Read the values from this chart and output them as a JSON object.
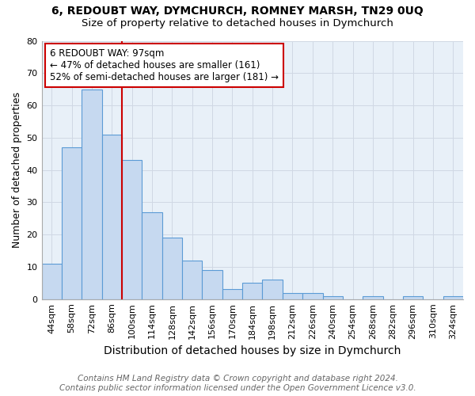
{
  "title": "6, REDOUBT WAY, DYMCHURCH, ROMNEY MARSH, TN29 0UQ",
  "subtitle": "Size of property relative to detached houses in Dymchurch",
  "xlabel": "Distribution of detached houses by size in Dymchurch",
  "ylabel": "Number of detached properties",
  "categories": [
    "44sqm",
    "58sqm",
    "72sqm",
    "86sqm",
    "100sqm",
    "114sqm",
    "128sqm",
    "142sqm",
    "156sqm",
    "170sqm",
    "184sqm",
    "198sqm",
    "212sqm",
    "226sqm",
    "240sqm",
    "254sqm",
    "268sqm",
    "282sqm",
    "296sqm",
    "310sqm",
    "324sqm"
  ],
  "values": [
    11,
    47,
    65,
    51,
    43,
    27,
    19,
    12,
    9,
    3,
    5,
    6,
    2,
    2,
    1,
    0,
    1,
    0,
    1,
    0,
    1
  ],
  "bar_color": "#c6d9f0",
  "bar_edge_color": "#5b9bd5",
  "grid_color": "#d0d8e4",
  "bg_color": "#ffffff",
  "annotation_label": "6 REDOUBT WAY: 97sqm",
  "annotation_line1": "← 47% of detached houses are smaller (161)",
  "annotation_line2": "52% of semi-detached houses are larger (181) →",
  "annotation_box_color": "#ffffff",
  "annotation_box_edge_color": "#cc0000",
  "vline_color": "#cc0000",
  "ylim": [
    0,
    80
  ],
  "yticks": [
    0,
    10,
    20,
    30,
    40,
    50,
    60,
    70,
    80
  ],
  "footnote1": "Contains HM Land Registry data © Crown copyright and database right 2024.",
  "footnote2": "Contains public sector information licensed under the Open Government Licence v3.0.",
  "title_fontsize": 10,
  "subtitle_fontsize": 9.5,
  "xlabel_fontsize": 10,
  "ylabel_fontsize": 9,
  "tick_fontsize": 8,
  "footnote_fontsize": 7.5,
  "annotation_fontsize": 8.5,
  "red_line_bin_index": 4
}
